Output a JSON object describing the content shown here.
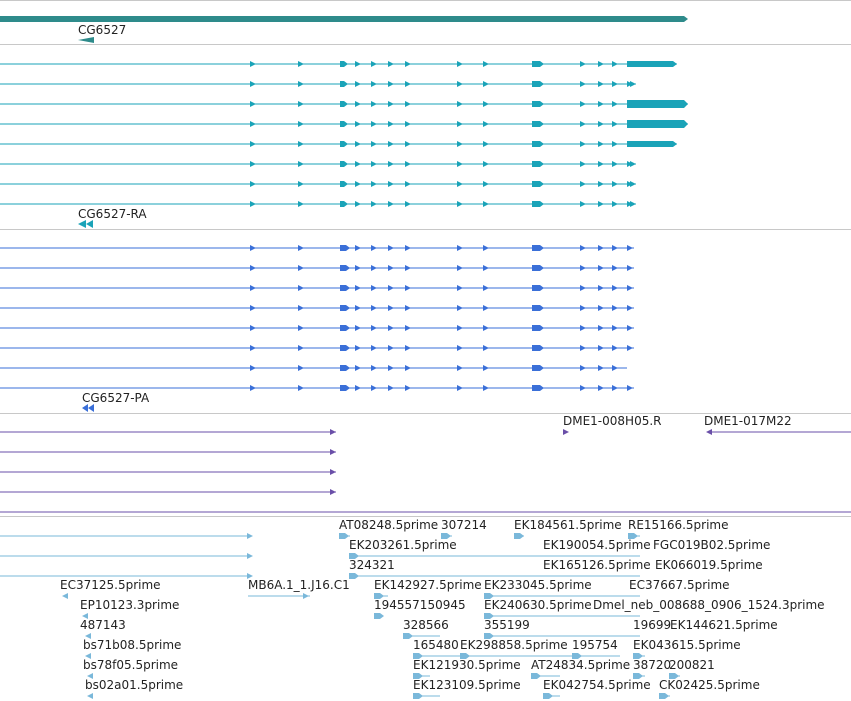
{
  "colors": {
    "gene": "#2e8b8b",
    "transcript": "#1aa3b8",
    "protein": "#3a6fd8",
    "clone": "#6a4fa8",
    "est": "#7ab8da",
    "separator": "#c8c8c8"
  },
  "tracks": {
    "gene": {
      "name": "gene-track",
      "label": "CG6527"
    },
    "transcripts": {
      "name": "transcript-track",
      "label": "CG6527-RA"
    },
    "proteins": {
      "name": "protein-track",
      "label": "CG6527-PA"
    },
    "clones": {
      "name": "clone-track",
      "labels": [
        "DME1-008H05.R",
        "DME1-017M22"
      ]
    },
    "ests": {
      "name": "est-track",
      "labels": [
        "AT08248.5prime",
        "307214",
        "EK184561.5prime",
        "RE15166.5prime",
        "EK203261.5prime",
        "EK190054.5prime",
        "FGC019B02.5prime",
        "324321",
        "EK165126.5prime",
        "EK066019.5prime",
        "EC37125.5prime",
        "MB6A.1_1.J16.C1",
        "EK142927.5prime",
        "EK233045.5prime",
        "EC37667.5prime",
        "EP10123.3prime",
        "194557150945",
        "EK240630.5prime",
        "Dmel_neb_008688_0906_1524.3prime",
        "487143",
        "328566",
        "355199",
        "19699",
        "EK144621.5prime",
        "bs71b08.5prime",
        "165480",
        "EK298858.5prime",
        "195754",
        "EK043615.5prime",
        "bs78f05.5prime",
        "EK121930.5prime",
        "AT24834.5prime",
        "38720",
        "200821",
        "bs02a01.5prime",
        "EK123109.5prime",
        "EK042754.5prime",
        "CK02425.5prime"
      ]
    }
  }
}
